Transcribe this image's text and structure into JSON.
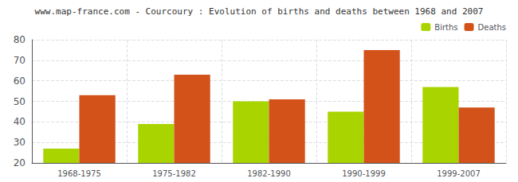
{
  "chart_data": {
    "type": "bar",
    "title": "www.map-france.com - Courcoury : Evolution of births and deaths between 1968 and 2007",
    "categories": [
      "1968-1975",
      "1975-1982",
      "1982-1990",
      "1990-1999",
      "1999-2007"
    ],
    "series": [
      {
        "name": "Births",
        "color": "#aad400",
        "values": [
          27,
          39,
          50,
          45,
          57
        ]
      },
      {
        "name": "Deaths",
        "color": "#d2521a",
        "values": [
          53,
          63,
          51,
          75,
          47
        ]
      }
    ],
    "ylim": [
      20,
      80
    ],
    "yticks": [
      20,
      30,
      40,
      50,
      60,
      70,
      80
    ],
    "grid": true,
    "legend": "upper right"
  }
}
